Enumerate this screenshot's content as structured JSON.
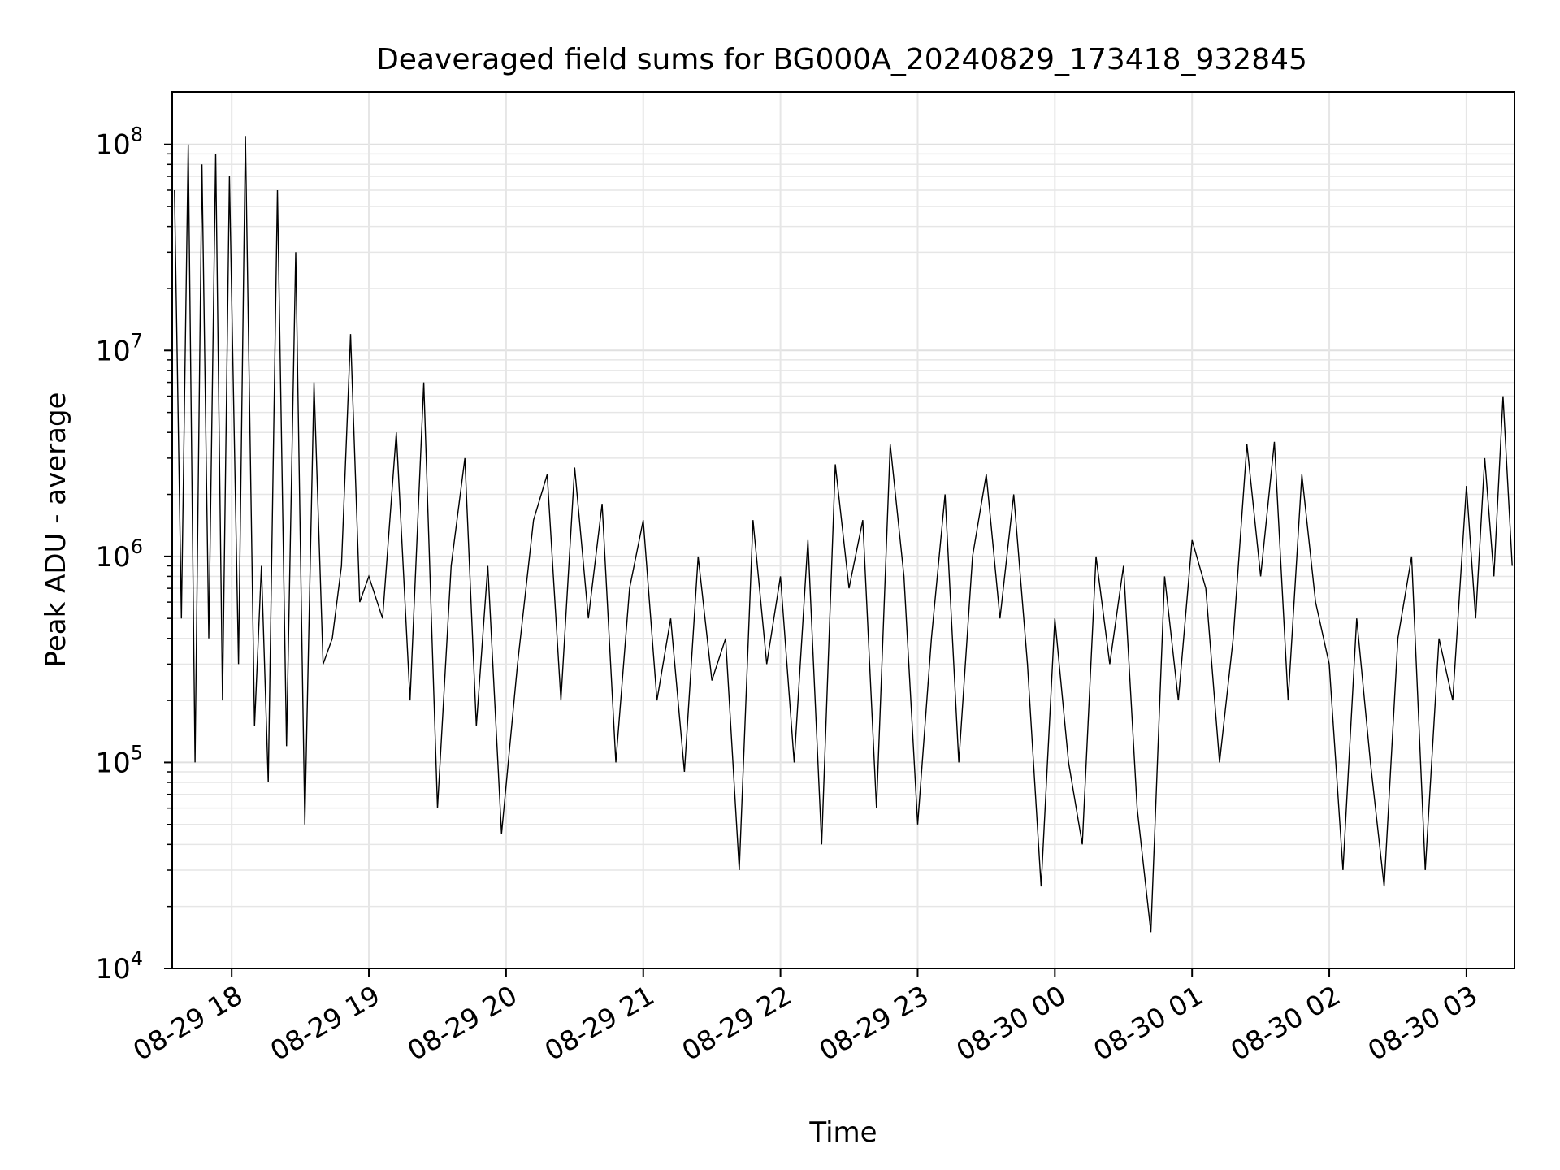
{
  "chart_data": {
    "type": "line",
    "title": "Deaveraged field sums for BG000A_20240829_173418_932845",
    "xlabel": "Time",
    "ylabel": "Peak ADU - average",
    "y_scale": "log",
    "ylim": [
      10000,
      180000000
    ],
    "xlim": [
      "2024-08-29 17:34",
      "2024-08-30 03:21"
    ],
    "grid": true,
    "legend": "none",
    "line_color": "#000000",
    "x_tick_labels": [
      "08-29 18",
      "08-29 19",
      "08-29 20",
      "08-29 21",
      "08-29 22",
      "08-29 23",
      "08-30 00",
      "08-30 01",
      "08-30 02",
      "08-30 03"
    ],
    "y_tick_labels": [
      {
        "base": "10",
        "exp": "4"
      },
      {
        "base": "10",
        "exp": "5"
      },
      {
        "base": "10",
        "exp": "6"
      },
      {
        "base": "10",
        "exp": "7"
      },
      {
        "base": "10",
        "exp": "8"
      }
    ],
    "series": [
      {
        "x": [
          "2024-08-29 17:35",
          "2024-08-29 17:38",
          "2024-08-29 17:41",
          "2024-08-29 17:44",
          "2024-08-29 17:47",
          "2024-08-29 17:50",
          "2024-08-29 17:53",
          "2024-08-29 17:56",
          "2024-08-29 17:59",
          "2024-08-29 18:03",
          "2024-08-29 18:06",
          "2024-08-29 18:10",
          "2024-08-29 18:13",
          "2024-08-29 18:16",
          "2024-08-29 18:20",
          "2024-08-29 18:24",
          "2024-08-29 18:28",
          "2024-08-29 18:32",
          "2024-08-29 18:36",
          "2024-08-29 18:40",
          "2024-08-29 18:44",
          "2024-08-29 18:48",
          "2024-08-29 18:52",
          "2024-08-29 18:56",
          "2024-08-29 19:00",
          "2024-08-29 19:06",
          "2024-08-29 19:12",
          "2024-08-29 19:18",
          "2024-08-29 19:24",
          "2024-08-29 19:30",
          "2024-08-29 19:36",
          "2024-08-29 19:42",
          "2024-08-29 19:47",
          "2024-08-29 19:52",
          "2024-08-29 19:58",
          "2024-08-29 20:05",
          "2024-08-29 20:12",
          "2024-08-29 20:18",
          "2024-08-29 20:24",
          "2024-08-29 20:30",
          "2024-08-29 20:36",
          "2024-08-29 20:42",
          "2024-08-29 20:48",
          "2024-08-29 20:54",
          "2024-08-29 21:00",
          "2024-08-29 21:06",
          "2024-08-29 21:12",
          "2024-08-29 21:18",
          "2024-08-29 21:24",
          "2024-08-29 21:30",
          "2024-08-29 21:36",
          "2024-08-29 21:42",
          "2024-08-29 21:48",
          "2024-08-29 21:54",
          "2024-08-29 22:00",
          "2024-08-29 22:06",
          "2024-08-29 22:12",
          "2024-08-29 22:18",
          "2024-08-29 22:24",
          "2024-08-29 22:30",
          "2024-08-29 22:36",
          "2024-08-29 22:42",
          "2024-08-29 22:48",
          "2024-08-29 22:54",
          "2024-08-29 23:00",
          "2024-08-29 23:06",
          "2024-08-29 23:12",
          "2024-08-29 23:18",
          "2024-08-29 23:24",
          "2024-08-29 23:30",
          "2024-08-29 23:36",
          "2024-08-29 23:42",
          "2024-08-29 23:48",
          "2024-08-29 23:54",
          "2024-08-30 00:00",
          "2024-08-30 00:06",
          "2024-08-30 00:12",
          "2024-08-30 00:18",
          "2024-08-30 00:24",
          "2024-08-30 00:30",
          "2024-08-30 00:36",
          "2024-08-30 00:42",
          "2024-08-30 00:48",
          "2024-08-30 00:54",
          "2024-08-30 01:00",
          "2024-08-30 01:06",
          "2024-08-30 01:12",
          "2024-08-30 01:18",
          "2024-08-30 01:24",
          "2024-08-30 01:30",
          "2024-08-30 01:36",
          "2024-08-30 01:42",
          "2024-08-30 01:48",
          "2024-08-30 01:54",
          "2024-08-30 02:00",
          "2024-08-30 02:06",
          "2024-08-30 02:12",
          "2024-08-30 02:18",
          "2024-08-30 02:24",
          "2024-08-30 02:30",
          "2024-08-30 02:36",
          "2024-08-30 02:42",
          "2024-08-30 02:48",
          "2024-08-30 02:54",
          "2024-08-30 03:00",
          "2024-08-30 03:04",
          "2024-08-30 03:08",
          "2024-08-30 03:12",
          "2024-08-30 03:16",
          "2024-08-30 03:20"
        ],
        "y": [
          60000000,
          500000,
          100000000,
          100000,
          80000000,
          400000,
          90000000,
          200000,
          70000000,
          300000,
          110000000,
          150000,
          900000,
          80000,
          60000000,
          120000,
          30000000,
          50000,
          7000000,
          300000,
          400000,
          900000,
          12000000,
          600000,
          800000,
          500000,
          4000000,
          200000,
          7000000,
          60000,
          900000,
          3000000,
          150000,
          900000,
          45000,
          300000,
          1500000,
          2500000,
          200000,
          2700000,
          500000,
          1800000,
          100000,
          700000,
          1500000,
          200000,
          500000,
          90000,
          1000000,
          250000,
          400000,
          30000,
          1500000,
          300000,
          800000,
          100000,
          1200000,
          40000,
          2800000,
          700000,
          1500000,
          60000,
          3500000,
          800000,
          50000,
          400000,
          2000000,
          100000,
          1000000,
          2500000,
          500000,
          2000000,
          300000,
          25000,
          500000,
          100000,
          40000,
          1000000,
          300000,
          900000,
          60000,
          15000,
          800000,
          200000,
          1200000,
          700000,
          100000,
          400000,
          3500000,
          800000,
          3600000,
          200000,
          2500000,
          600000,
          300000,
          30000,
          500000,
          100000,
          25000,
          400000,
          1000000,
          30000,
          400000,
          200000,
          2200000,
          500000,
          3000000,
          800000,
          6000000,
          900000
        ]
      }
    ]
  }
}
